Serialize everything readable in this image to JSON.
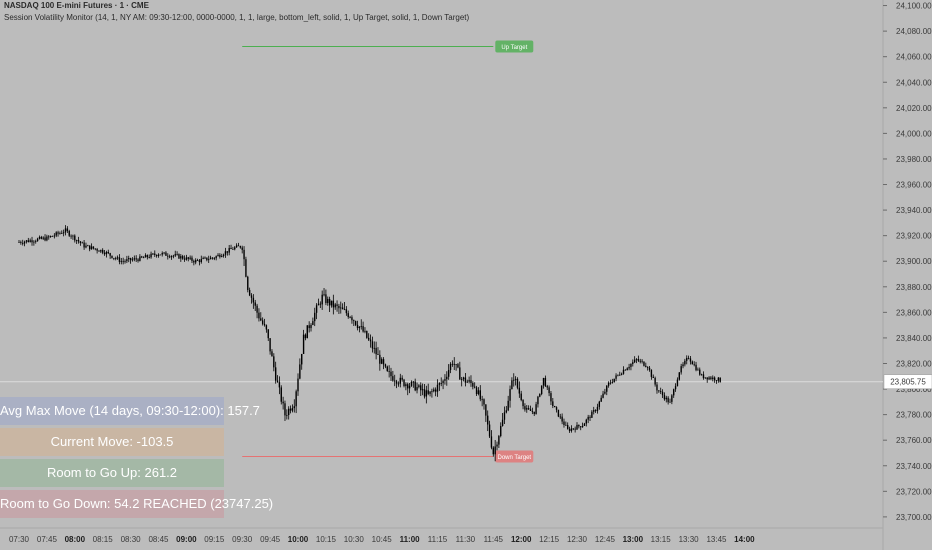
{
  "header": {
    "symbol": "NASDAQ 100 E-mini Futures · 1 · CME",
    "indicator": "Session Volatility Monitor (14, 1, NY AM: 09:30-12:00, 0000-0000, 1, 1, large, bottom_left, solid, 1, Up Target, solid, 1, Down Target)"
  },
  "table": [
    {
      "label": "Avg Max Move (14 days, 09:30-12:00): 157.7",
      "color": "#aab0c4"
    },
    {
      "label": "Current Move: -103.5",
      "color": "#c9b6a3"
    },
    {
      "label": "Room to Go Up: 261.2",
      "color": "#a4b8a6"
    },
    {
      "label": "Room to Go Down: 54.2 REACHED (23747.25)",
      "color": "#c4a7ab"
    }
  ],
  "colors": {
    "up": "#4caf50",
    "down": "#e57373",
    "candle": "#000000",
    "grid": "#c6c6c6"
  },
  "chart_data": {
    "type": "line",
    "price_ticks": [
      24100,
      24080,
      24060,
      24040,
      24020,
      24000,
      23980,
      23960,
      23940,
      23920,
      23900,
      23880,
      23860,
      23840,
      23820,
      23800,
      23780,
      23760,
      23740,
      23720,
      23700
    ],
    "price_labels": [
      "24,100.00",
      "24,080.00",
      "24,060.00",
      "24,040.00",
      "24,020.00",
      "24,000.00",
      "23,980.00",
      "23,960.00",
      "23,940.00",
      "23,920.00",
      "23,900.00",
      "23,880.00",
      "23,860.00",
      "23,840.00",
      "23,820.00",
      "23,800.00",
      "23,780.00",
      "23,760.00",
      "23,740.00",
      "23,720.00",
      "23,700.00"
    ],
    "ylim": [
      23696,
      24102
    ],
    "last_price": 23805.75,
    "last_price_label": "23,805.75",
    "time_labels": [
      "07:30",
      "07:45",
      "08:00",
      "08:15",
      "08:30",
      "08:45",
      "09:00",
      "09:15",
      "09:30",
      "09:45",
      "10:00",
      "10:15",
      "10:30",
      "10:45",
      "11:00",
      "11:15",
      "11:30",
      "11:45",
      "12:00",
      "12:15",
      "12:30",
      "12:45",
      "13:00",
      "13:15",
      "13:30",
      "13:45",
      "14:00"
    ],
    "bold_times": [
      "08:00",
      "09:00",
      "10:00",
      "11:00",
      "12:00",
      "13:00",
      "14:00"
    ],
    "up_target": {
      "label": "Up Target",
      "price": 24068,
      "from": "09:30",
      "to": "11:45"
    },
    "down_target": {
      "label": "Down Target",
      "price": 23747.25,
      "from": "09:30",
      "to": "11:45"
    },
    "price_path": [
      [
        "07:30",
        23915
      ],
      [
        "07:45",
        23918
      ],
      [
        "07:55",
        23924
      ],
      [
        "08:05",
        23912
      ],
      [
        "08:15",
        23908
      ],
      [
        "08:25",
        23900
      ],
      [
        "08:35",
        23902
      ],
      [
        "08:45",
        23906
      ],
      [
        "08:55",
        23904
      ],
      [
        "09:05",
        23900
      ],
      [
        "09:15",
        23903
      ],
      [
        "09:25",
        23910
      ],
      [
        "09:30",
        23912
      ],
      [
        "09:33",
        23880
      ],
      [
        "09:38",
        23860
      ],
      [
        "09:43",
        23845
      ],
      [
        "09:48",
        23810
      ],
      [
        "09:53",
        23780
      ],
      [
        "09:58",
        23790
      ],
      [
        "10:03",
        23840
      ],
      [
        "10:08",
        23856
      ],
      [
        "10:13",
        23872
      ],
      [
        "10:18",
        23866
      ],
      [
        "10:28",
        23858
      ],
      [
        "10:35",
        23845
      ],
      [
        "10:42",
        23828
      ],
      [
        "10:48",
        23812
      ],
      [
        "10:55",
        23806
      ],
      [
        "11:03",
        23802
      ],
      [
        "11:10",
        23795
      ],
      [
        "11:18",
        23806
      ],
      [
        "11:23",
        23822
      ],
      [
        "11:28",
        23808
      ],
      [
        "11:35",
        23803
      ],
      [
        "11:40",
        23785
      ],
      [
        "11:45",
        23750
      ],
      [
        "11:50",
        23775
      ],
      [
        "11:56",
        23810
      ],
      [
        "12:02",
        23784
      ],
      [
        "12:07",
        23782
      ],
      [
        "12:12",
        23808
      ],
      [
        "12:17",
        23787
      ],
      [
        "12:25",
        23768
      ],
      [
        "12:33",
        23772
      ],
      [
        "12:40",
        23784
      ],
      [
        "12:47",
        23804
      ],
      [
        "12:55",
        23815
      ],
      [
        "13:02",
        23823
      ],
      [
        "13:08",
        23818
      ],
      [
        "13:13",
        23800
      ],
      [
        "13:20",
        23789
      ],
      [
        "13:25",
        23814
      ],
      [
        "13:30",
        23825
      ],
      [
        "13:37",
        23810
      ],
      [
        "13:45",
        23808
      ],
      [
        "13:48",
        23806
      ]
    ]
  }
}
